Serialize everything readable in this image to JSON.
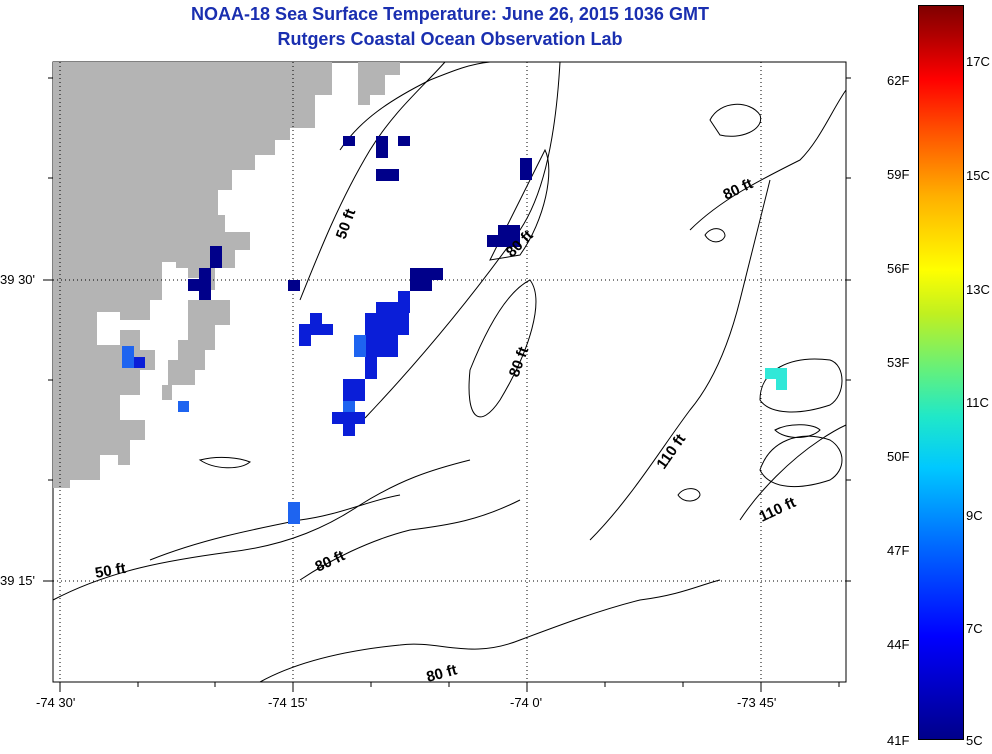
{
  "header": {
    "title": "NOAA-18 Sea Surface Temperature:  June 26, 2015 1036 GMT",
    "subtitle": "Rutgers Coastal Ocean Observation Lab"
  },
  "axes": {
    "longitude_labels": [
      "-74 30'",
      "-74 15'",
      "-74 0'",
      "-73 45'"
    ],
    "latitude_labels": [
      "39 30'",
      "39 15'"
    ]
  },
  "contour_labels": [
    "50 ft",
    "80 ft",
    "80 ft",
    "80 ft",
    "110 ft",
    "110 ft",
    "50 ft",
    "80 ft",
    "80 ft"
  ],
  "colorbar": {
    "fahrenheit_labels": [
      "62F",
      "59F",
      "56F",
      "53F",
      "50F",
      "47F",
      "44F",
      "41F"
    ],
    "celsius_labels": [
      "17C",
      "15C",
      "13C",
      "11C",
      "9C",
      "7C",
      "5C"
    ]
  },
  "colors": {
    "title": "#1a2fb0",
    "land": "#b4b4b4",
    "sst_cold": "#00008a",
    "sst_blue": "#0a1ed8",
    "sst_light": "#1e64f0",
    "sst_cyan": "#30e8d8"
  }
}
